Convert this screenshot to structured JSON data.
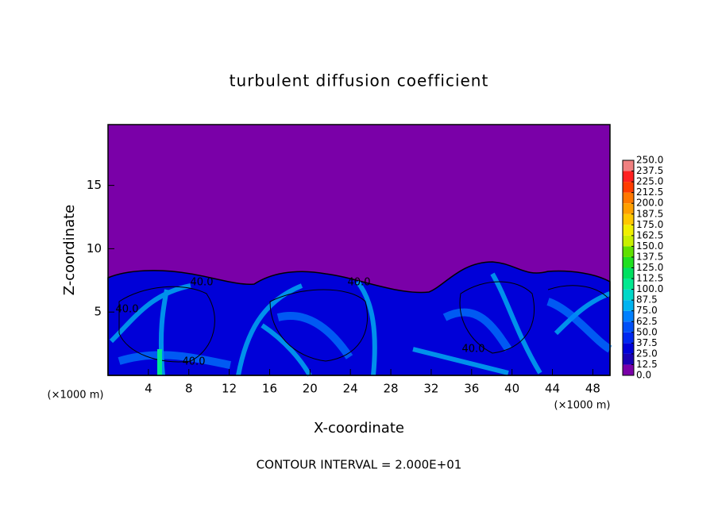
{
  "chart_data": {
    "type": "contour",
    "title": "turbulent diffusion coefficient",
    "x_label": "X-coordinate",
    "y_label": "Z-coordinate",
    "x_unit": "(×1000 m)",
    "x_unit_right": "(×1000 m)",
    "footer": "CONTOUR INTERVAL = 2.000E+01",
    "xlim": [
      0,
      49.7
    ],
    "xticks": [
      4,
      8,
      12,
      16,
      20,
      24,
      28,
      32,
      36,
      40,
      44,
      48
    ],
    "ylim": [
      0,
      19.8
    ],
    "yticks": [
      5,
      10,
      15
    ],
    "contour_labels": [
      "40.0",
      "40.0",
      "40.0",
      "40.0",
      "40.0"
    ],
    "colorbar_ticks": [
      {
        "value": 0,
        "label": "0.0"
      },
      {
        "value": 12.5,
        "label": "12.5"
      },
      {
        "value": 25,
        "label": "25.0"
      },
      {
        "value": 37.5,
        "label": "37.5"
      },
      {
        "value": 50,
        "label": "50.0"
      },
      {
        "value": 62.5,
        "label": "62.5"
      },
      {
        "value": 75,
        "label": "75.0"
      },
      {
        "value": 87.5,
        "label": "87.5"
      },
      {
        "value": 100,
        "label": "100.0"
      },
      {
        "value": 112.5,
        "label": "112.5"
      },
      {
        "value": 125,
        "label": "125.0"
      },
      {
        "value": 137.5,
        "label": "137.5"
      },
      {
        "value": 150,
        "label": "150.0"
      },
      {
        "value": 162.5,
        "label": "162.5"
      },
      {
        "value": 175,
        "label": "175.0"
      },
      {
        "value": 187.5,
        "label": "187.5"
      },
      {
        "value": 200,
        "label": "200.0"
      },
      {
        "value": 212.5,
        "label": "212.5"
      },
      {
        "value": 225,
        "label": "225.0"
      },
      {
        "value": 237.5,
        "label": "237.5"
      },
      {
        "value": 250,
        "label": "250.0"
      }
    ],
    "colorbar_colors": [
      "#7a00a8",
      "#1a00b4",
      "#0000d8",
      "#0028f0",
      "#0050f8",
      "#0080ff",
      "#00b4f0",
      "#00d8c8",
      "#00e890",
      "#00e060",
      "#20e020",
      "#60e000",
      "#c8f000",
      "#f0f000",
      "#ffc800",
      "#ffa000",
      "#ff7800",
      "#ff3c00",
      "#ff2020",
      "#f08080"
    ]
  }
}
